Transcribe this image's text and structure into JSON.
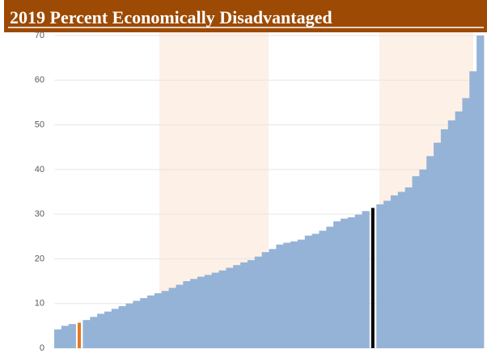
{
  "chart_data": {
    "type": "bar",
    "title": "2019 Percent Economically Disadvantaged",
    "values": [
      4.2,
      5,
      5.4,
      5.7,
      6.3,
      7,
      7.7,
      8.2,
      8.8,
      9.4,
      10,
      10.6,
      11.2,
      11.8,
      12.3,
      12.8,
      13.5,
      14.2,
      15,
      15.5,
      16,
      16.4,
      16.9,
      17.4,
      18,
      18.6,
      19.2,
      19.7,
      20.5,
      21.5,
      22.2,
      23.2,
      23.6,
      23.9,
      24.3,
      25.2,
      25.6,
      26.3,
      27.2,
      28.4,
      29,
      29.3,
      29.9,
      30.7,
      31.4,
      32.2,
      33,
      34.2,
      35,
      36,
      38.5,
      40,
      43,
      46,
      49,
      51,
      53,
      56,
      62,
      70
    ],
    "color": "#95b3d7",
    "highlights": [
      {
        "index": 3,
        "color": "#e87722"
      },
      {
        "index": 44,
        "color": "#000000"
      }
    ],
    "ylim": [
      0,
      70
    ],
    "yticks": [
      0,
      10,
      20,
      30,
      40,
      50,
      60,
      70
    ],
    "grid": true
  }
}
